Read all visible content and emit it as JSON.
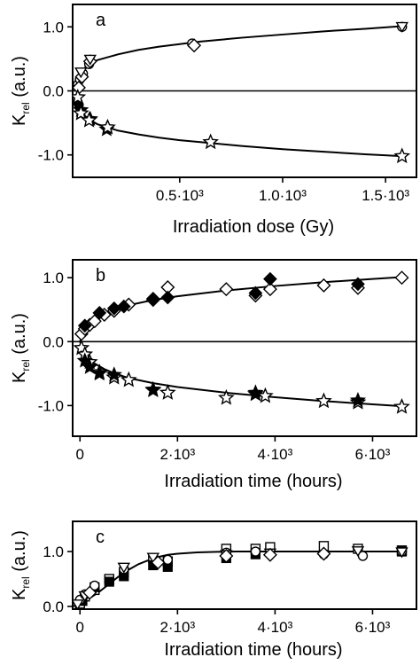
{
  "chart_data": [
    {
      "panel": "a",
      "type": "scatter",
      "xlabel": "Irradiation dose (Gy)",
      "ylabel_main": "K",
      "ylabel_sub": "rel",
      "ylabel_unit": "(a.u.)",
      "xlim": [
        -20,
        1650
      ],
      "ylim": [
        -1.35,
        1.35
      ],
      "xticks": [
        {
          "v": 500,
          "label": "0.5·10³"
        },
        {
          "v": 1000,
          "label": "1.0·10³"
        },
        {
          "v": 1500,
          "label": "1.5·10³"
        }
      ],
      "yticks": [
        {
          "v": 1.0,
          "label": "1.0"
        },
        {
          "v": 0.0,
          "label": "0.0"
        },
        {
          "v": -1.0,
          "label": "-1.0"
        }
      ],
      "zero_line": true,
      "series": [
        {
          "marker": "circle-open",
          "x": [
            5,
            15,
            30,
            60,
            560,
            1580
          ],
          "y": [
            0.1,
            0.18,
            0.27,
            0.42,
            0.74,
            1.0
          ]
        },
        {
          "marker": "diamond-open",
          "x": [
            10,
            25,
            65,
            570
          ],
          "y": [
            0.05,
            0.22,
            0.46,
            0.71
          ]
        },
        {
          "marker": "triangle-down-open",
          "x": [
            20,
            65,
            1580
          ],
          "y": [
            0.3,
            0.5,
            1.01
          ]
        },
        {
          "marker": "circle-filled",
          "x": [
            5,
            10
          ],
          "y": [
            -0.18,
            -0.22
          ]
        },
        {
          "marker": "star-filled",
          "x": [
            20,
            65,
            145
          ],
          "y": [
            -0.3,
            -0.44,
            -0.6
          ]
        },
        {
          "marker": "star-open",
          "x": [
            5,
            20,
            60,
            150,
            650,
            1580
          ],
          "y": [
            -0.1,
            -0.35,
            -0.46,
            -0.57,
            -0.8,
            -1.02
          ]
        }
      ],
      "fits": [
        {
          "x": [
            5,
            25,
            50,
            100,
            200,
            300,
            400,
            500,
            600,
            800,
            1000,
            1200,
            1400,
            1580
          ],
          "y": [
            0.1,
            0.3,
            0.4,
            0.48,
            0.57,
            0.64,
            0.69,
            0.73,
            0.77,
            0.83,
            0.88,
            0.93,
            0.97,
            1.01
          ]
        },
        {
          "x": [
            5,
            25,
            50,
            100,
            200,
            300,
            400,
            500,
            600,
            800,
            1000,
            1200,
            1400,
            1580
          ],
          "y": [
            -0.1,
            -0.33,
            -0.43,
            -0.52,
            -0.62,
            -0.68,
            -0.73,
            -0.77,
            -0.8,
            -0.86,
            -0.91,
            -0.95,
            -0.99,
            -1.02
          ]
        }
      ]
    },
    {
      "panel": "b",
      "type": "scatter",
      "xlabel": "Irradiation time (hours)",
      "ylabel_main": "K",
      "ylabel_sub": "rel",
      "ylabel_unit": "(a.u.)",
      "xlim": [
        -150,
        6900
      ],
      "ylim": [
        -1.48,
        1.28
      ],
      "xticks": [
        {
          "v": 0,
          "label": "0"
        },
        {
          "v": 2000,
          "label": "2·10³"
        },
        {
          "v": 4000,
          "label": "4·10³"
        },
        {
          "v": 6000,
          "label": "6·10³"
        }
      ],
      "yticks": [
        {
          "v": 1.0,
          "label": "1.0"
        },
        {
          "v": 0.0,
          "label": "0.0"
        },
        {
          "v": -1.0,
          "label": "-1.0"
        }
      ],
      "zero_line": true,
      "series": [
        {
          "marker": "diamond-open",
          "x": [
            30,
            100,
            200,
            300,
            500,
            700,
            1000,
            1500,
            1800,
            3000,
            3600,
            3900,
            5000,
            5700,
            6600
          ],
          "y": [
            0.12,
            0.2,
            0.26,
            0.32,
            0.42,
            0.48,
            0.58,
            0.67,
            0.85,
            0.82,
            0.72,
            0.82,
            0.88,
            0.84,
            1.0
          ]
        },
        {
          "marker": "diamond-filled",
          "x": [
            100,
            400,
            700,
            900,
            1500,
            1800,
            3600,
            3900,
            5700
          ],
          "y": [
            0.25,
            0.45,
            0.52,
            0.55,
            0.65,
            0.69,
            0.76,
            0.98,
            0.9
          ]
        },
        {
          "marker": "star-open",
          "x": [
            30,
            100,
            200,
            400,
            700,
            1000,
            1500,
            1800,
            3000,
            3600,
            3800,
            5000,
            5700,
            6600
          ],
          "y": [
            -0.1,
            -0.2,
            -0.32,
            -0.48,
            -0.56,
            -0.6,
            -0.76,
            -0.8,
            -0.88,
            -0.82,
            -0.85,
            -0.93,
            -0.95,
            -1.02
          ]
        },
        {
          "marker": "star-filled",
          "x": [
            100,
            200,
            400,
            700,
            1500,
            3600,
            5700
          ],
          "y": [
            -0.3,
            -0.4,
            -0.5,
            -0.52,
            -0.75,
            -0.8,
            -0.92
          ]
        }
      ],
      "fits": [
        {
          "x": [
            0,
            100,
            250,
            500,
            750,
            1000,
            1500,
            2000,
            3000,
            4000,
            5000,
            6000,
            6600
          ],
          "y": [
            0.0,
            0.2,
            0.32,
            0.43,
            0.51,
            0.57,
            0.65,
            0.71,
            0.8,
            0.87,
            0.93,
            0.98,
            1.01
          ]
        },
        {
          "x": [
            0,
            100,
            250,
            500,
            750,
            1000,
            1500,
            2000,
            3000,
            4000,
            5000,
            6000,
            6600
          ],
          "y": [
            0.0,
            -0.2,
            -0.32,
            -0.43,
            -0.51,
            -0.57,
            -0.65,
            -0.71,
            -0.8,
            -0.87,
            -0.93,
            -0.98,
            -1.01
          ]
        }
      ]
    },
    {
      "panel": "c",
      "type": "scatter",
      "xlabel": "Irradiation time (hours)",
      "ylabel_main": "K",
      "ylabel_sub": "rel",
      "ylabel_unit": "(a.u.)",
      "xlim": [
        -150,
        6900
      ],
      "ylim": [
        -0.05,
        1.55
      ],
      "xticks": [
        {
          "v": 0,
          "label": "0"
        },
        {
          "v": 2000,
          "label": "2·10³"
        },
        {
          "v": 4000,
          "label": "4·10³"
        },
        {
          "v": 6000,
          "label": "6·10³"
        }
      ],
      "yticks": [
        {
          "v": 1.0,
          "label": "1.0"
        },
        {
          "v": 0.0,
          "label": "0.0"
        }
      ],
      "zero_line": false,
      "series": [
        {
          "marker": "square-open",
          "x": [
            0,
            100,
            300,
            600,
            900,
            1500,
            1800,
            3000,
            3600,
            3900,
            5000,
            5700,
            6600
          ],
          "y": [
            0.05,
            0.18,
            0.3,
            0.5,
            0.62,
            0.88,
            0.82,
            1.05,
            1.05,
            1.08,
            1.1,
            1.05,
            1.02
          ]
        },
        {
          "marker": "square-filled",
          "x": [
            50,
            300,
            600,
            900,
            1500,
            1800,
            3000,
            3600,
            6600
          ],
          "y": [
            0.1,
            0.35,
            0.45,
            0.55,
            0.75,
            0.72,
            0.88,
            0.95,
            1.0
          ]
        },
        {
          "marker": "circle-open",
          "x": [
            0,
            100,
            300,
            900,
            1800,
            3000,
            3600,
            5000,
            5800,
            6600
          ],
          "y": [
            0.12,
            0.22,
            0.38,
            0.68,
            0.85,
            0.98,
            1.0,
            0.95,
            0.92,
            1.0
          ]
        },
        {
          "marker": "triangle-down-open",
          "x": [
            -50,
            100,
            900,
            1500,
            3000,
            3900,
            5700,
            6600
          ],
          "y": [
            0.05,
            0.2,
            0.72,
            0.9,
            0.95,
            0.98,
            1.02,
            1.0
          ]
        },
        {
          "marker": "diamond-open",
          "x": [
            200,
            1600,
            3000,
            3900,
            5000
          ],
          "y": [
            0.25,
            0.8,
            0.92,
            0.94,
            0.96
          ]
        }
      ],
      "fits": [
        {
          "x": [
            -150,
            0,
            100,
            200,
            300,
            400,
            500,
            600,
            700,
            800,
            900,
            1000,
            1200,
            1400,
            1600,
            1800,
            2000,
            2400,
            2800,
            3200,
            4000,
            5000,
            6000,
            6600
          ],
          "y": [
            0.0,
            0.05,
            0.1,
            0.15,
            0.21,
            0.27,
            0.34,
            0.41,
            0.48,
            0.55,
            0.61,
            0.67,
            0.77,
            0.84,
            0.9,
            0.94,
            0.96,
            0.985,
            0.995,
            1.0,
            1.0,
            1.0,
            1.0,
            1.0
          ]
        }
      ]
    }
  ]
}
